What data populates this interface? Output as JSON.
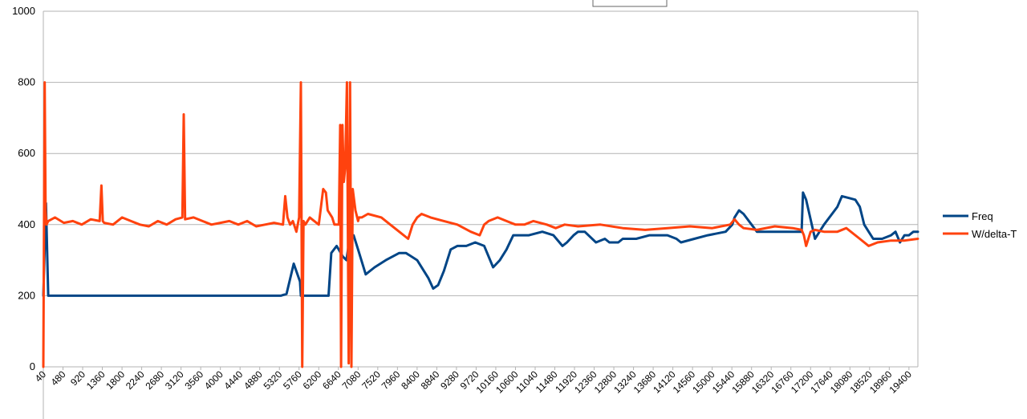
{
  "chart_data": {
    "type": "line",
    "title": "",
    "xlabel": "",
    "ylabel": "",
    "ylim": [
      0,
      1000
    ],
    "yticks": [
      0,
      200,
      400,
      600,
      800,
      1000
    ],
    "xlim": [
      40,
      19600
    ],
    "xticks": [
      40,
      480,
      920,
      1360,
      1800,
      2240,
      2680,
      3120,
      3560,
      4000,
      4440,
      4880,
      5320,
      5760,
      6200,
      6640,
      7080,
      7520,
      7960,
      8400,
      8840,
      9280,
      9720,
      10160,
      10600,
      11040,
      11480,
      11920,
      12360,
      12800,
      13240,
      13680,
      14120,
      14560,
      15000,
      15440,
      15880,
      16320,
      16760,
      17200,
      17640,
      18080,
      18520,
      18960,
      19400
    ],
    "grid": true,
    "legend_position": "right",
    "series": [
      {
        "name": "Freq",
        "color": "#004586",
        "x": [
          40,
          100,
          150,
          1000,
          3000,
          5300,
          5350,
          5480,
          5640,
          5780,
          5800,
          6350,
          6420,
          6480,
          6600,
          6740,
          6820,
          6900,
          6980,
          7080,
          7250,
          7450,
          7700,
          8000,
          8150,
          8400,
          8650,
          8760,
          8870,
          9000,
          9150,
          9300,
          9500,
          9700,
          9900,
          10100,
          10250,
          10400,
          10550,
          10700,
          10900,
          11200,
          11450,
          11650,
          11750,
          11900,
          12000,
          12150,
          12400,
          12600,
          12700,
          12900,
          13000,
          13300,
          13600,
          14000,
          14200,
          14300,
          14600,
          14900,
          15300,
          15450,
          15500,
          15600,
          15700,
          16000,
          16400,
          16800,
          17000,
          17030,
          17100,
          17300,
          17500,
          17800,
          17900,
          18050,
          18200,
          18300,
          18400,
          18500,
          18600,
          18800,
          19000,
          19100,
          19200,
          19300,
          19400,
          19500,
          19600
        ],
        "values": [
          200,
          460,
          200,
          200,
          200,
          200,
          200,
          205,
          290,
          240,
          200,
          200,
          200,
          320,
          340,
          310,
          300,
          370,
          370,
          330,
          260,
          280,
          300,
          320,
          320,
          300,
          250,
          220,
          230,
          270,
          330,
          340,
          340,
          350,
          340,
          280,
          300,
          330,
          370,
          370,
          370,
          380,
          370,
          340,
          350,
          370,
          380,
          380,
          350,
          360,
          350,
          350,
          360,
          360,
          370,
          370,
          360,
          350,
          360,
          370,
          380,
          400,
          420,
          440,
          430,
          380,
          380,
          380,
          380,
          490,
          470,
          360,
          400,
          450,
          480,
          475,
          470,
          450,
          400,
          380,
          360,
          360,
          370,
          380,
          350,
          370,
          370,
          380,
          380
        ]
      },
      {
        "name": "W/delta-T",
        "color": "#ff420e",
        "x": [
          40,
          70,
          90,
          110,
          150,
          300,
          500,
          700,
          900,
          1100,
          1300,
          1340,
          1370,
          1400,
          1600,
          1800,
          2000,
          2200,
          2400,
          2600,
          2800,
          3000,
          3150,
          3180,
          3210,
          3400,
          3600,
          3800,
          4000,
          4200,
          4400,
          4600,
          4800,
          5000,
          5200,
          5400,
          5450,
          5500,
          5560,
          5620,
          5700,
          5760,
          5800,
          5830,
          5860,
          5900,
          6000,
          6100,
          6200,
          6300,
          6360,
          6400,
          6500,
          6550,
          6650,
          6680,
          6700,
          6730,
          6760,
          6790,
          6830,
          6870,
          6900,
          6930,
          6960,
          6990,
          7020,
          7040,
          7060,
          7080,
          7100,
          7160,
          7300,
          7600,
          7800,
          8000,
          8200,
          8300,
          8400,
          8500,
          8700,
          9000,
          9300,
          9600,
          9800,
          9900,
          10000,
          10200,
          10400,
          10600,
          10800,
          11000,
          11300,
          11500,
          11700,
          12000,
          12500,
          13000,
          13500,
          14000,
          14500,
          15000,
          15400,
          15500,
          15600,
          15700,
          16000,
          16400,
          16800,
          17000,
          17050,
          17100,
          17200,
          17300,
          17500,
          17800,
          18000,
          18300,
          18500,
          18700,
          19000,
          19300,
          19600
        ],
        "values": [
          0,
          800,
          440,
          400,
          410,
          420,
          405,
          410,
          400,
          415,
          410,
          510,
          410,
          405,
          400,
          420,
          410,
          400,
          395,
          410,
          400,
          415,
          420,
          710,
          415,
          420,
          410,
          400,
          405,
          410,
          400,
          410,
          395,
          400,
          405,
          400,
          480,
          420,
          400,
          410,
          380,
          420,
          800,
          0,
          410,
          400,
          420,
          410,
          400,
          500,
          490,
          440,
          420,
          400,
          400,
          680,
          0,
          680,
          520,
          560,
          800,
          10,
          800,
          0,
          500,
          470,
          440,
          430,
          420,
          410,
          420,
          420,
          430,
          420,
          400,
          380,
          360,
          400,
          420,
          430,
          420,
          410,
          400,
          380,
          370,
          400,
          410,
          420,
          410,
          400,
          400,
          410,
          400,
          390,
          400,
          395,
          400,
          390,
          385,
          390,
          395,
          390,
          400,
          415,
          400,
          390,
          385,
          395,
          390,
          385,
          370,
          340,
          380,
          385,
          380,
          380,
          390,
          360,
          340,
          350,
          355,
          355,
          360
        ]
      }
    ]
  },
  "colors": {
    "grid": "#b3b3b3",
    "axis": "#b3b3b3",
    "background": "#ffffff"
  }
}
